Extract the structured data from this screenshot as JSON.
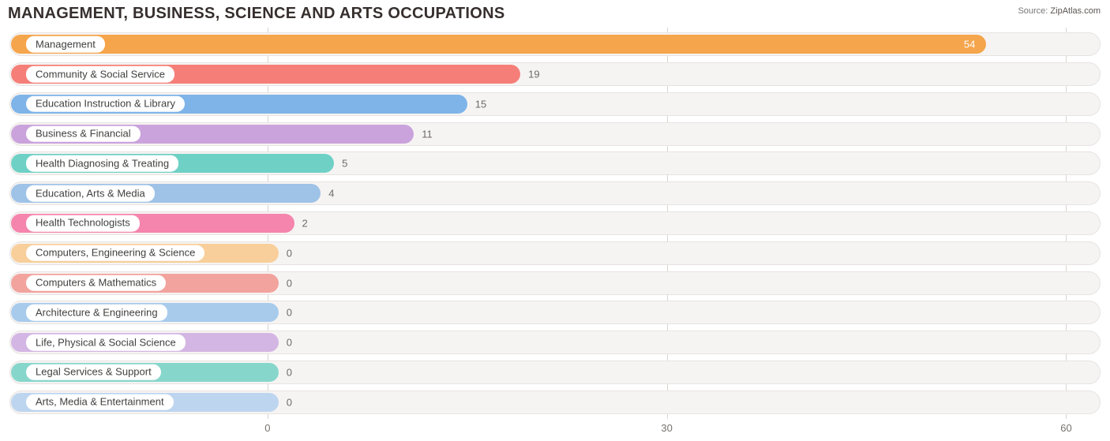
{
  "header": {
    "title": "MANAGEMENT, BUSINESS, SCIENCE AND ARTS OCCUPATIONS",
    "source_label": "Source:",
    "source_value": "ZipAtlas.com"
  },
  "chart": {
    "type": "bar-horizontal",
    "background_color": "#ffffff",
    "track_bg": "#f6f4f3",
    "track_border": "#e7e3e1",
    "grid_color": "#d9d4d2",
    "pill_bg": "#ffffff",
    "pill_text_color": "#40423f",
    "value_text_color_outside": "#6f6a67",
    "value_text_color_inside": "#ffffff",
    "axis_label_color": "#77726f",
    "label_fontsize": 13,
    "value_fontsize": 13,
    "x_origin_pct": 23.8,
    "x_scale_pct_per_unit": 1.213,
    "x_ticks": [
      {
        "value": 0,
        "label": "0"
      },
      {
        "value": 30,
        "label": "30"
      },
      {
        "value": 60,
        "label": "60"
      }
    ],
    "zero_bar_extra_pct": 1.0,
    "bars": [
      {
        "label": "Management",
        "value": 54,
        "color": "#f5a54b",
        "value_inside": true
      },
      {
        "label": "Community & Social Service",
        "value": 19,
        "color": "#f57f78",
        "value_inside": false
      },
      {
        "label": "Education Instruction & Library",
        "value": 15,
        "color": "#7fb4e8",
        "value_inside": false
      },
      {
        "label": "Business & Financial",
        "value": 11,
        "color": "#caa3dc",
        "value_inside": false
      },
      {
        "label": "Health Diagnosing & Treating",
        "value": 5,
        "color": "#6fd1c5",
        "value_inside": false
      },
      {
        "label": "Education, Arts & Media",
        "value": 4,
        "color": "#9fc2e7",
        "value_inside": false
      },
      {
        "label": "Health Technologists",
        "value": 2,
        "color": "#f585ad",
        "value_inside": false
      },
      {
        "label": "Computers, Engineering & Science",
        "value": 0,
        "color": "#f8cf9a",
        "value_inside": false
      },
      {
        "label": "Computers & Mathematics",
        "value": 0,
        "color": "#f2a39e",
        "value_inside": false
      },
      {
        "label": "Architecture & Engineering",
        "value": 0,
        "color": "#a8cbec",
        "value_inside": false
      },
      {
        "label": "Life, Physical & Social Science",
        "value": 0,
        "color": "#d3b6e3",
        "value_inside": false
      },
      {
        "label": "Legal Services & Support",
        "value": 0,
        "color": "#87d6cc",
        "value_inside": false
      },
      {
        "label": "Arts, Media & Entertainment",
        "value": 0,
        "color": "#bdd5ef",
        "value_inside": false
      }
    ]
  }
}
